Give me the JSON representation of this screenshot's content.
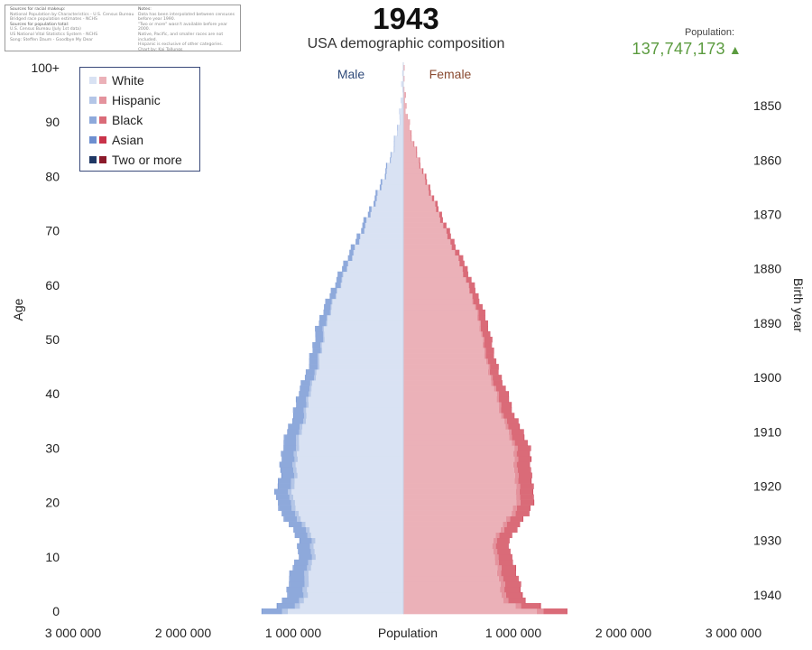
{
  "sources": {
    "left": [
      {
        "text": "Sources for racial makeup:",
        "head": true
      },
      {
        "text": "National Population by Characteristics - U.S. Census Bureau",
        "head": false
      },
      {
        "text": "Bridged race population estimates - NCHS",
        "head": false
      },
      {
        "text": "Sources for population total:",
        "head": true
      },
      {
        "text": "U.S. Census Bureau (July 1st data)",
        "head": false
      },
      {
        "text": "US National Vital Statistics System - NCHS",
        "head": false
      },
      {
        "text": "Song: Steffen Daum - Goodbye My Dear",
        "head": false
      }
    ],
    "right": [
      {
        "text": "Notes:",
        "head": true
      },
      {
        "text": "Data has been interpolated between censuses",
        "head": false
      },
      {
        "text": "before year 1990.",
        "head": false
      },
      {
        "text": "\"Two or more\" wasn't available before year 2000.",
        "head": false
      },
      {
        "text": "Native, Pacific, and smaller races are not included.",
        "head": false
      },
      {
        "text": "Hispanic is exclusive of other categories.",
        "head": false
      },
      {
        "text": "Chart by: Kaj Tallungs",
        "head": false
      }
    ]
  },
  "header": {
    "year": "1943",
    "subtitle": "USA demographic composition",
    "population_label": "Population:",
    "population_value": "137,747,173",
    "population_arrow": "▲"
  },
  "colors": {
    "male": {
      "White": "#d9e2f3",
      "Hispanic": "#b4c6e7",
      "Black": "#8ea9db",
      "Asian": "#6e8fd0",
      "Two or more": "#203864"
    },
    "female": {
      "White": "#ebb1b8",
      "Hispanic": "#e4939d",
      "Black": "#da6b78",
      "Asian": "#c9334a",
      "Two or more": "#8b1a2a"
    }
  },
  "chart_data": {
    "type": "bar",
    "orientation": "horizontal-population-pyramid",
    "male_label": "Male",
    "female_label": "Female",
    "xlabel": "Population",
    "ylabel": "Age",
    "y2label": "Birth year",
    "xlim": [
      -3000000,
      3000000
    ],
    "ylim": [
      0,
      100
    ],
    "x_ticks": [
      {
        "value": -3000000,
        "label": "3 000 000"
      },
      {
        "value": -2000000,
        "label": "2 000 000"
      },
      {
        "value": -1000000,
        "label": "1 000 000"
      },
      {
        "value": 1000000,
        "label": "1 000 000"
      },
      {
        "value": 2000000,
        "label": "2 000 000"
      },
      {
        "value": 3000000,
        "label": "3 000 000"
      }
    ],
    "y_ticks": [
      {
        "value": 0,
        "label": "0"
      },
      {
        "value": 10,
        "label": "10"
      },
      {
        "value": 20,
        "label": "20"
      },
      {
        "value": 30,
        "label": "30"
      },
      {
        "value": 40,
        "label": "40"
      },
      {
        "value": 50,
        "label": "50"
      },
      {
        "value": 60,
        "label": "60"
      },
      {
        "value": 70,
        "label": "70"
      },
      {
        "value": 80,
        "label": "80"
      },
      {
        "value": 90,
        "label": "90"
      },
      {
        "value": 100,
        "label": "100+"
      }
    ],
    "birth_year_ticks": [
      {
        "age": 3,
        "label": "1940"
      },
      {
        "age": 13,
        "label": "1930"
      },
      {
        "age": 23,
        "label": "1920"
      },
      {
        "age": 33,
        "label": "1910"
      },
      {
        "age": 43,
        "label": "1900"
      },
      {
        "age": 53,
        "label": "1890"
      },
      {
        "age": 63,
        "label": "1880"
      },
      {
        "age": 73,
        "label": "1870"
      },
      {
        "age": 83,
        "label": "1860"
      },
      {
        "age": 93,
        "label": "1850"
      }
    ],
    "series": [
      "White",
      "Hispanic",
      "Black",
      "Asian",
      "Two or more"
    ],
    "legend_position": "top-left",
    "grid": false,
    "anchors": {
      "male_total": [
        [
          0,
          1300000
        ],
        [
          1,
          1150000
        ],
        [
          2,
          1090000
        ],
        [
          3,
          1060000
        ],
        [
          5,
          1050000
        ],
        [
          8,
          1010000
        ],
        [
          10,
          960000
        ],
        [
          13,
          950000
        ],
        [
          16,
          1040000
        ],
        [
          18,
          1110000
        ],
        [
          20,
          1150000
        ],
        [
          22,
          1160000
        ],
        [
          25,
          1120000
        ],
        [
          28,
          1110000
        ],
        [
          30,
          1100000
        ],
        [
          33,
          1060000
        ],
        [
          36,
          1000000
        ],
        [
          40,
          960000
        ],
        [
          44,
          880000
        ],
        [
          48,
          830000
        ],
        [
          52,
          790000
        ],
        [
          56,
          720000
        ],
        [
          60,
          630000
        ],
        [
          64,
          540000
        ],
        [
          68,
          440000
        ],
        [
          72,
          350000
        ],
        [
          76,
          260000
        ],
        [
          80,
          180000
        ],
        [
          84,
          110000
        ],
        [
          88,
          60000
        ],
        [
          92,
          25000
        ],
        [
          96,
          8000
        ],
        [
          100,
          2000
        ]
      ],
      "female_total": [
        [
          0,
          1480000
        ],
        [
          1,
          1250000
        ],
        [
          2,
          1120000
        ],
        [
          3,
          1080000
        ],
        [
          5,
          1060000
        ],
        [
          8,
          1020000
        ],
        [
          10,
          980000
        ],
        [
          13,
          960000
        ],
        [
          16,
          1060000
        ],
        [
          18,
          1140000
        ],
        [
          20,
          1180000
        ],
        [
          22,
          1190000
        ],
        [
          25,
          1160000
        ],
        [
          28,
          1160000
        ],
        [
          30,
          1150000
        ],
        [
          33,
          1090000
        ],
        [
          36,
          1010000
        ],
        [
          40,
          950000
        ],
        [
          44,
          870000
        ],
        [
          48,
          820000
        ],
        [
          52,
          780000
        ],
        [
          56,
          720000
        ],
        [
          60,
          640000
        ],
        [
          64,
          560000
        ],
        [
          68,
          460000
        ],
        [
          72,
          370000
        ],
        [
          76,
          280000
        ],
        [
          80,
          200000
        ],
        [
          84,
          130000
        ],
        [
          88,
          70000
        ],
        [
          92,
          30000
        ],
        [
          96,
          10000
        ],
        [
          100,
          3000
        ]
      ],
      "hispanic_share": [
        [
          0,
          0.04
        ],
        [
          30,
          0.025
        ],
        [
          60,
          0.01
        ],
        [
          100,
          0.005
        ]
      ],
      "black_share": [
        [
          0,
          0.14
        ],
        [
          10,
          0.12
        ],
        [
          20,
          0.1
        ],
        [
          30,
          0.1
        ],
        [
          40,
          0.09
        ],
        [
          50,
          0.085
        ],
        [
          60,
          0.075
        ],
        [
          80,
          0.065
        ],
        [
          100,
          0.06
        ]
      ],
      "asian_share": [
        [
          0,
          0.006
        ],
        [
          50,
          0.004
        ],
        [
          100,
          0.002
        ]
      ],
      "two_or_more_share": [
        [
          0,
          0
        ],
        [
          100,
          0
        ]
      ]
    }
  }
}
